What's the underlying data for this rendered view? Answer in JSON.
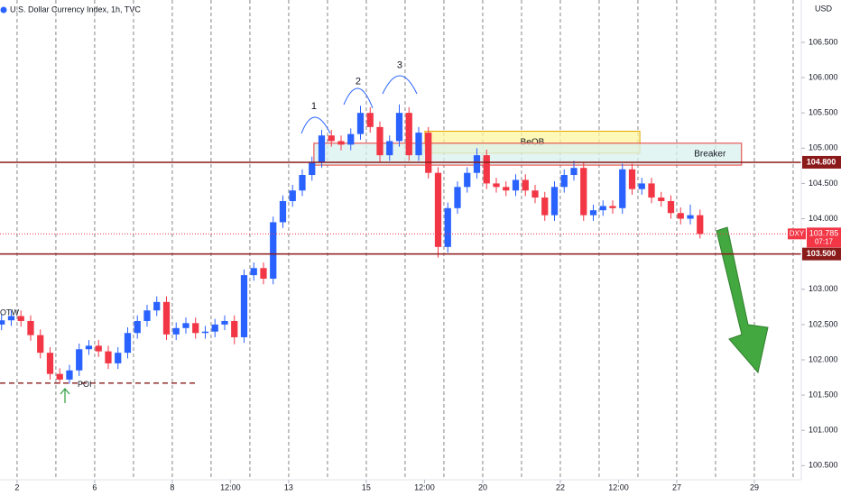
{
  "chart_data": {
    "type": "candlestick",
    "title": "U.S. Dollar Currency Index, 1h, TVC",
    "currency": "USD",
    "up_color": "#2962ff",
    "down_color": "#f23645",
    "x": [
      -0.4,
      -0.15,
      0.1,
      0.35,
      0.6,
      0.85,
      1.1,
      1.35,
      1.6,
      1.85,
      2.1,
      2.35,
      2.6,
      2.85,
      3.1,
      3.35,
      3.6,
      3.85,
      4.1,
      4.35,
      4.6,
      4.85,
      5.1,
      5.35,
      5.6,
      5.85,
      6.1,
      6.35,
      6.6,
      6.85,
      7.1,
      7.35,
      7.6,
      7.85,
      8.1,
      8.35,
      8.6,
      8.85,
      9.1,
      9.35,
      9.6,
      9.85,
      10.1,
      10.35,
      10.6,
      10.85,
      11.1,
      11.35,
      11.6,
      11.85,
      12.1,
      12.35,
      12.6,
      12.85,
      13.1,
      13.35,
      13.6,
      13.85,
      14.1,
      14.35,
      14.6,
      14.85,
      15.1,
      15.35,
      15.6,
      15.85,
      16.1,
      16.35,
      16.6,
      16.85,
      17.1,
      17.35,
      17.6
    ],
    "open": [
      102.5,
      102.56,
      102.62,
      102.55,
      102.35,
      102.1,
      101.8,
      101.72,
      101.85,
      102.15,
      102.2,
      102.12,
      101.95,
      102.1,
      102.38,
      102.55,
      102.7,
      102.82,
      102.36,
      102.45,
      102.52,
      102.38,
      102.4,
      102.5,
      102.55,
      102.32,
      103.2,
      103.3,
      103.15,
      103.95,
      104.25,
      104.4,
      104.62,
      104.8,
      105.18,
      105.1,
      105.05,
      105.2,
      105.5,
      105.3,
      104.9,
      105.1,
      105.5,
      104.9,
      105.22,
      104.65,
      103.6,
      104.15,
      104.45,
      104.65,
      104.9,
      104.5,
      104.45,
      104.4,
      104.55,
      104.4,
      104.3,
      104.05,
      104.45,
      104.62,
      104.72,
      104.05,
      104.12,
      104.18,
      104.15,
      104.7,
      104.42,
      104.5,
      104.3,
      104.25,
      104.08,
      104.0,
      104.05
    ],
    "high": [
      102.64,
      102.7,
      102.7,
      102.63,
      102.43,
      102.18,
      101.88,
      101.93,
      102.23,
      102.28,
      102.28,
      102.2,
      102.18,
      102.46,
      102.63,
      102.78,
      102.9,
      102.9,
      102.53,
      102.6,
      102.6,
      102.48,
      102.58,
      102.63,
      102.63,
      103.28,
      103.38,
      103.38,
      104.03,
      104.33,
      104.48,
      104.7,
      104.88,
      105.26,
      105.26,
      105.18,
      105.28,
      105.6,
      105.58,
      105.38,
      105.18,
      105.62,
      105.58,
      105.3,
      105.3,
      104.73,
      104.23,
      104.53,
      104.73,
      105.0,
      104.98,
      104.58,
      104.53,
      104.63,
      104.63,
      104.48,
      104.38,
      104.53,
      104.7,
      104.82,
      104.8,
      104.2,
      104.26,
      104.26,
      104.78,
      104.78,
      104.58,
      104.58,
      104.38,
      104.33,
      104.16,
      104.2,
      104.13
    ],
    "low": [
      102.42,
      102.48,
      102.47,
      102.27,
      102.02,
      101.72,
      101.66,
      101.66,
      101.77,
      102.07,
      102.04,
      101.87,
      101.87,
      102.02,
      102.3,
      102.47,
      102.62,
      102.28,
      102.28,
      102.37,
      102.3,
      102.3,
      102.32,
      102.42,
      102.22,
      102.24,
      103.12,
      103.07,
      103.07,
      103.87,
      104.17,
      104.32,
      104.54,
      104.72,
      105.02,
      104.97,
      104.97,
      105.12,
      105.22,
      104.8,
      104.82,
      105.02,
      104.82,
      104.82,
      104.57,
      103.45,
      103.52,
      104.07,
      104.37,
      104.57,
      104.42,
      104.37,
      104.32,
      104.32,
      104.32,
      104.22,
      103.97,
      103.97,
      104.37,
      104.54,
      103.97,
      103.97,
      104.04,
      104.07,
      104.07,
      104.34,
      104.34,
      104.22,
      104.17,
      104.0,
      103.92,
      103.92,
      103.72
    ],
    "close": [
      102.56,
      102.62,
      102.55,
      102.35,
      102.1,
      101.8,
      101.72,
      101.85,
      102.15,
      102.2,
      102.12,
      101.95,
      102.1,
      102.38,
      102.55,
      102.7,
      102.82,
      102.36,
      102.45,
      102.52,
      102.38,
      102.4,
      102.5,
      102.55,
      102.32,
      103.2,
      103.3,
      103.15,
      103.95,
      104.25,
      104.4,
      104.62,
      104.8,
      105.18,
      105.1,
      105.05,
      105.2,
      105.5,
      105.3,
      104.9,
      105.1,
      105.5,
      104.9,
      105.22,
      104.65,
      103.6,
      104.15,
      104.45,
      104.65,
      104.9,
      104.5,
      104.45,
      104.4,
      104.55,
      104.4,
      104.3,
      104.05,
      104.45,
      104.62,
      104.72,
      104.05,
      104.12,
      104.18,
      104.15,
      104.7,
      104.42,
      104.5,
      104.3,
      104.25,
      104.08,
      104.0,
      104.05,
      103.785
    ],
    "xlim": [
      -0.44,
      20.21
    ],
    "xticks": [
      {
        "value": 0,
        "label": "2"
      },
      {
        "value": 2,
        "label": "6"
      },
      {
        "value": 4,
        "label": "8"
      },
      {
        "value": 5.5,
        "label": "12:00"
      },
      {
        "value": 7,
        "label": "13"
      },
      {
        "value": 9,
        "label": "15"
      },
      {
        "value": 10.5,
        "label": "12:00"
      },
      {
        "value": 12,
        "label": "20"
      },
      {
        "value": 14,
        "label": "22"
      },
      {
        "value": 15.5,
        "label": "12:00"
      },
      {
        "value": 17,
        "label": "27"
      },
      {
        "value": 19,
        "label": "29"
      }
    ],
    "day_lines": [
      0,
      1,
      2,
      3,
      4,
      5,
      6,
      7,
      8,
      9,
      10,
      11,
      12,
      13,
      14,
      15,
      16,
      17,
      18,
      19,
      20
    ],
    "ylim": [
      100.3,
      107.1
    ],
    "yticks": [
      {
        "value": 106.5,
        "label": "106.500"
      },
      {
        "value": 106,
        "label": "106.000"
      },
      {
        "value": 105.5,
        "label": "105.500"
      },
      {
        "value": 105,
        "label": "105.000"
      },
      {
        "value": 104.5,
        "label": "104.500"
      },
      {
        "value": 104,
        "label": "104.000"
      },
      {
        "value": 103,
        "label": "103.000"
      },
      {
        "value": 102.5,
        "label": "102.500"
      },
      {
        "value": 102,
        "label": "102.000"
      },
      {
        "value": 101.5,
        "label": "101.500"
      },
      {
        "value": 101,
        "label": "101.000"
      },
      {
        "value": 100.5,
        "label": "100.500"
      }
    ],
    "levels": [
      {
        "value": 104.8,
        "label": "104.800",
        "color": "#8b1a1a"
      },
      {
        "value": 103.5,
        "label": "103.500",
        "color": "#8b1a1a"
      }
    ],
    "last": {
      "value": 103.785,
      "symbol": "DXY",
      "countdown": "07:17",
      "color": "#f23645"
    },
    "zones": [
      {
        "label": "BeOB",
        "x": [
          10.51,
          16.05
        ],
        "y": [
          104.93,
          105.24
        ],
        "fill": "#fff59d",
        "border": "#e0a800"
      },
      {
        "label": "Breaker",
        "x": [
          7.65,
          18.67
        ],
        "y": [
          104.76,
          105.07
        ],
        "fill": "#d9f2ee",
        "border": "#e53935"
      }
    ],
    "poi": {
      "label": "POI",
      "value": 101.67,
      "x": [
        -0.44,
        4.63
      ],
      "color": "#8b1a1a"
    },
    "annotations": [
      {
        "text": "1",
        "x": 7.65,
        "y": 105.59
      },
      {
        "text": "2",
        "x": 8.79,
        "y": 105.94
      },
      {
        "text": "3",
        "x": 9.86,
        "y": 106.17
      },
      {
        "text": "OTW",
        "x": -0.44,
        "y": 102.66
      }
    ]
  }
}
